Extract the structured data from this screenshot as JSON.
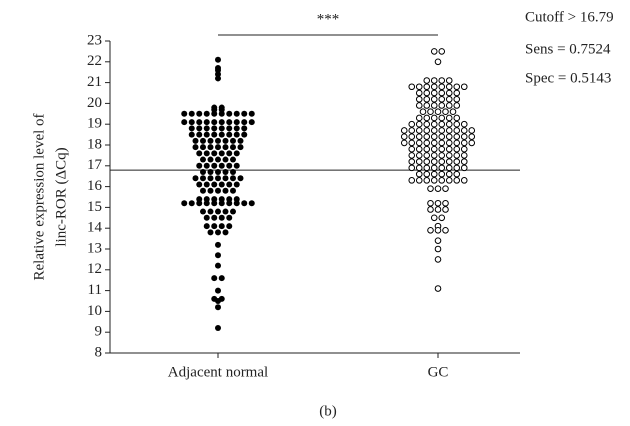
{
  "chart_data": {
    "type": "dotplot",
    "y_label": [
      "Relative expression level of",
      "linc-ROR (ΔCq)"
    ],
    "categories": [
      "Adjacent normal",
      "GC"
    ],
    "marker_fill": [
      "filled",
      "open"
    ],
    "values": [
      [
        22.1,
        21.7,
        21.6,
        21.4,
        21.2,
        19.8,
        19.7,
        19.7,
        19.8,
        19.5,
        19.5,
        19.5,
        19.5,
        19.5,
        19.5,
        19.5,
        19.5,
        19.5,
        19.5,
        19.1,
        19.1,
        19.1,
        19.1,
        19.1,
        19.1,
        19.1,
        19.1,
        19.1,
        19.1,
        18.8,
        18.8,
        18.8,
        18.8,
        18.8,
        18.8,
        18.8,
        18.8,
        18.5,
        18.5,
        18.5,
        18.5,
        18.5,
        18.5,
        18.5,
        18.5,
        18.2,
        18.2,
        18.2,
        18.2,
        18.2,
        18.2,
        18.2,
        17.9,
        17.9,
        17.9,
        17.9,
        17.9,
        17.9,
        17.9,
        17.6,
        17.6,
        17.6,
        17.6,
        17.6,
        17.6,
        17.3,
        17.3,
        17.3,
        17.3,
        17.3,
        17.0,
        17.0,
        17.0,
        17.0,
        17.0,
        17.0,
        16.7,
        16.7,
        16.7,
        16.7,
        16.7,
        16.4,
        16.4,
        16.4,
        16.4,
        16.4,
        16.4,
        16.4,
        16.1,
        16.1,
        16.1,
        16.1,
        16.1,
        16.1,
        15.8,
        15.8,
        15.8,
        15.8,
        15.8,
        15.4,
        15.4,
        15.4,
        15.4,
        15.4,
        15.4,
        15.2,
        15.2,
        15.2,
        15.2,
        15.2,
        15.2,
        15.2,
        15.2,
        15.2,
        15.2,
        14.8,
        14.8,
        14.8,
        14.8,
        14.8,
        14.5,
        14.5,
        14.5,
        14.5,
        14.1,
        14.1,
        14.1,
        14.1,
        13.8,
        13.8,
        13.8,
        13.2,
        12.7,
        12.2,
        11.6,
        11.6,
        11.0,
        10.6,
        10.5,
        10.6,
        10.2,
        9.2
      ],
      [
        22.5,
        22.5,
        22.0,
        21.1,
        21.1,
        21.1,
        21.1,
        20.8,
        20.8,
        20.8,
        20.8,
        20.8,
        20.8,
        20.8,
        20.8,
        20.5,
        20.5,
        20.5,
        20.5,
        20.5,
        20.5,
        20.2,
        20.2,
        20.2,
        20.2,
        20.2,
        20.2,
        19.9,
        19.9,
        19.9,
        19.9,
        19.9,
        19.9,
        19.6,
        19.6,
        19.6,
        19.6,
        19.6,
        19.3,
        19.3,
        19.3,
        19.3,
        19.3,
        19.3,
        19.0,
        19.0,
        19.0,
        19.0,
        19.0,
        19.0,
        19.0,
        19.0,
        18.7,
        18.7,
        18.7,
        18.7,
        18.7,
        18.7,
        18.7,
        18.7,
        18.7,
        18.7,
        18.4,
        18.4,
        18.4,
        18.4,
        18.4,
        18.4,
        18.4,
        18.4,
        18.4,
        18.4,
        18.1,
        18.1,
        18.1,
        18.1,
        18.1,
        18.1,
        18.1,
        18.1,
        18.1,
        18.1,
        17.8,
        17.8,
        17.8,
        17.8,
        17.8,
        17.8,
        17.8,
        17.8,
        17.5,
        17.5,
        17.5,
        17.5,
        17.5,
        17.5,
        17.5,
        17.5,
        17.2,
        17.2,
        17.2,
        17.2,
        17.2,
        17.2,
        17.2,
        17.2,
        16.9,
        16.9,
        16.9,
        16.9,
        16.9,
        16.9,
        16.9,
        16.9,
        16.6,
        16.6,
        16.6,
        16.6,
        16.6,
        16.6,
        16.3,
        16.3,
        16.3,
        16.3,
        16.3,
        16.3,
        16.3,
        16.3,
        15.9,
        15.9,
        15.9,
        15.2,
        15.2,
        15.2,
        14.9,
        14.9,
        14.9,
        14.5,
        14.5,
        14.1,
        13.9,
        13.9,
        13.9,
        13.4,
        13.0,
        12.5,
        11.1
      ]
    ],
    "cutoff": 16.79,
    "significance": "***",
    "annotations": [
      "Cutoff > 16.79",
      "Sens = 0.7524",
      "Spec = 0.5143"
    ],
    "caption": "(b)",
    "ylim": [
      8,
      23
    ],
    "yticks": [
      8,
      9,
      10,
      11,
      12,
      13,
      14,
      15,
      16,
      17,
      18,
      19,
      20,
      21,
      22,
      23
    ]
  }
}
